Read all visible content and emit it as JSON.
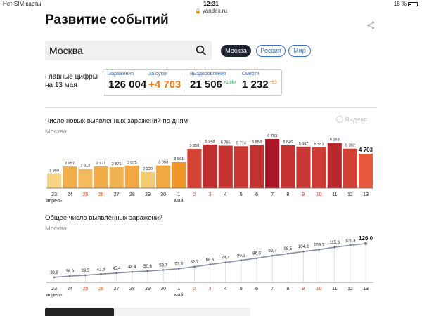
{
  "status_bar": {
    "carrier": "Нет SIM-карты",
    "time": "12:31",
    "battery": "18 %",
    "url": "yandex.ru"
  },
  "page": {
    "title": "Развитие событий"
  },
  "search": {
    "value": "Москва"
  },
  "region_tabs": [
    {
      "label": "Москва",
      "active": true
    },
    {
      "label": "Россия",
      "active": false
    },
    {
      "label": "Мир",
      "active": false
    }
  ],
  "key_figures": {
    "label_line1": "Главные цифры",
    "label_line2": "на 13 мая",
    "infected": {
      "label": "Заражения",
      "value": "126 004"
    },
    "daily": {
      "label": "За сутки",
      "value": "+4 703"
    },
    "recovered": {
      "label": "Выздоровления",
      "value": "21 506",
      "delta": "+1 864"
    },
    "deaths": {
      "label": "Смерти",
      "value": "1 232",
      "delta": "+53"
    }
  },
  "colors": {
    "accent_blue": "#3b6fc7",
    "orange": "#f07b16",
    "green": "#22a35a"
  },
  "chart_data": [
    {
      "type": "bar",
      "title": "Число новых выявленных заражений по дням",
      "subtitle": "Москва",
      "watermark": "Яндекс",
      "categories": [
        "23",
        "24",
        "25",
        "26",
        "27",
        "28",
        "29",
        "30",
        "1",
        "2",
        "3",
        "4",
        "5",
        "6",
        "7",
        "8",
        "9",
        "10",
        "11",
        "12",
        "13"
      ],
      "values": [
        1959,
        2957,
        2612,
        2971,
        2871,
        3075,
        2220,
        3093,
        3561,
        5358,
        5948,
        5795,
        5714,
        5858,
        6703,
        5846,
        5667,
        5551,
        6169,
        5392,
        4703
      ],
      "value_labels": [
        "1 959",
        "2 957",
        "2 612",
        "2 971",
        "2 871",
        "3 075",
        "2 220",
        "3 093",
        "3 561",
        "5 358",
        "5 948",
        "5 795",
        "5 714",
        "5 858",
        "6 703",
        "5 846",
        "5 667",
        "5 551",
        "6 169",
        "5 392",
        "4 703"
      ],
      "holiday_indices": [
        2,
        3,
        9,
        10,
        16,
        17
      ],
      "month_labels": [
        {
          "index": 0,
          "text": "апрель"
        },
        {
          "index": 8,
          "text": "май"
        }
      ],
      "ylim": [
        0,
        7000
      ]
    },
    {
      "type": "line",
      "title": "Общее число выявленных заражений",
      "subtitle": "Москва",
      "categories": [
        "23",
        "24",
        "25",
        "26",
        "27",
        "28",
        "29",
        "30",
        "1",
        "2",
        "3",
        "4",
        "5",
        "6",
        "7",
        "8",
        "9",
        "10",
        "11",
        "12",
        "13"
      ],
      "values": [
        33.9,
        36.9,
        39.5,
        42.5,
        45.4,
        48.4,
        50.6,
        53.7,
        57.3,
        62.7,
        68.6,
        74.4,
        80.1,
        86.0,
        92.7,
        98.5,
        104.2,
        109.7,
        115.9,
        121.3,
        126.0
      ],
      "value_labels": [
        "33,9",
        "36,9",
        "39,5",
        "42,5",
        "45,4",
        "48,4",
        "50,6",
        "53,7",
        "57,3",
        "62,7",
        "68,6",
        "74,4",
        "80,1",
        "86,0",
        "92,7",
        "98,5",
        "104,2",
        "109,7",
        "115,9",
        "121,3",
        "126,0"
      ],
      "holiday_indices": [
        2,
        3,
        9,
        10,
        16,
        17
      ],
      "month_labels": [
        {
          "index": 0,
          "text": "апрель"
        },
        {
          "index": 8,
          "text": "май"
        }
      ],
      "ylim": [
        0,
        130
      ]
    }
  ]
}
